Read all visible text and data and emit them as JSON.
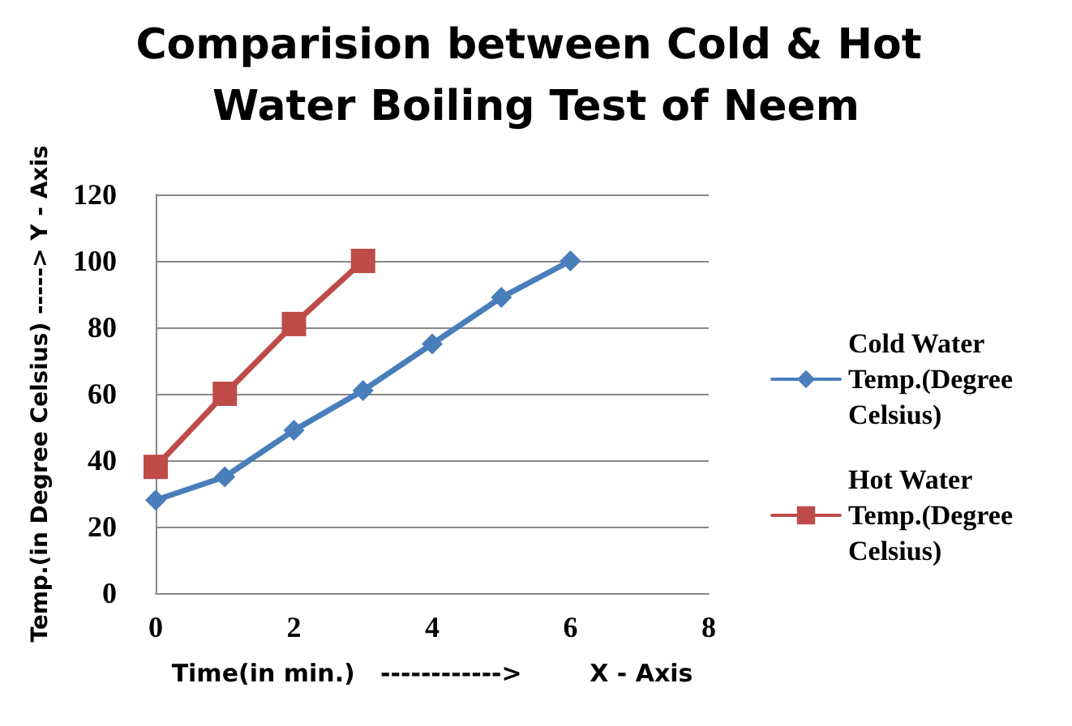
{
  "chart_data": {
    "type": "line",
    "title": "Comparision between Cold & Hot Water Boiling Test of Neem",
    "xlabel": "Time(in min.)   ------------>        X - Axis",
    "ylabel": "Temp.(in Degree Celsius) -----> Y - Axis",
    "xlim": [
      0,
      8
    ],
    "xticks": [
      0,
      2,
      4,
      6,
      8
    ],
    "ylim": [
      0,
      120
    ],
    "yticks": [
      0,
      20,
      40,
      60,
      80,
      100,
      120
    ],
    "grid": "y",
    "legend": "right",
    "series": [
      {
        "name": "Cold Water Temp.(Degree Celsius)",
        "color": "#4a7ebb",
        "marker": "diamond",
        "x": [
          0,
          1,
          2,
          3,
          4,
          5,
          6
        ],
        "values": [
          28,
          35,
          49,
          61,
          75,
          89,
          100
        ]
      },
      {
        "name": "Hot Water Temp.(Degree Celsius)",
        "color": "#be4b48",
        "marker": "square",
        "x": [
          0,
          1,
          2,
          3
        ],
        "values": [
          38,
          60,
          81,
          100
        ]
      }
    ]
  }
}
